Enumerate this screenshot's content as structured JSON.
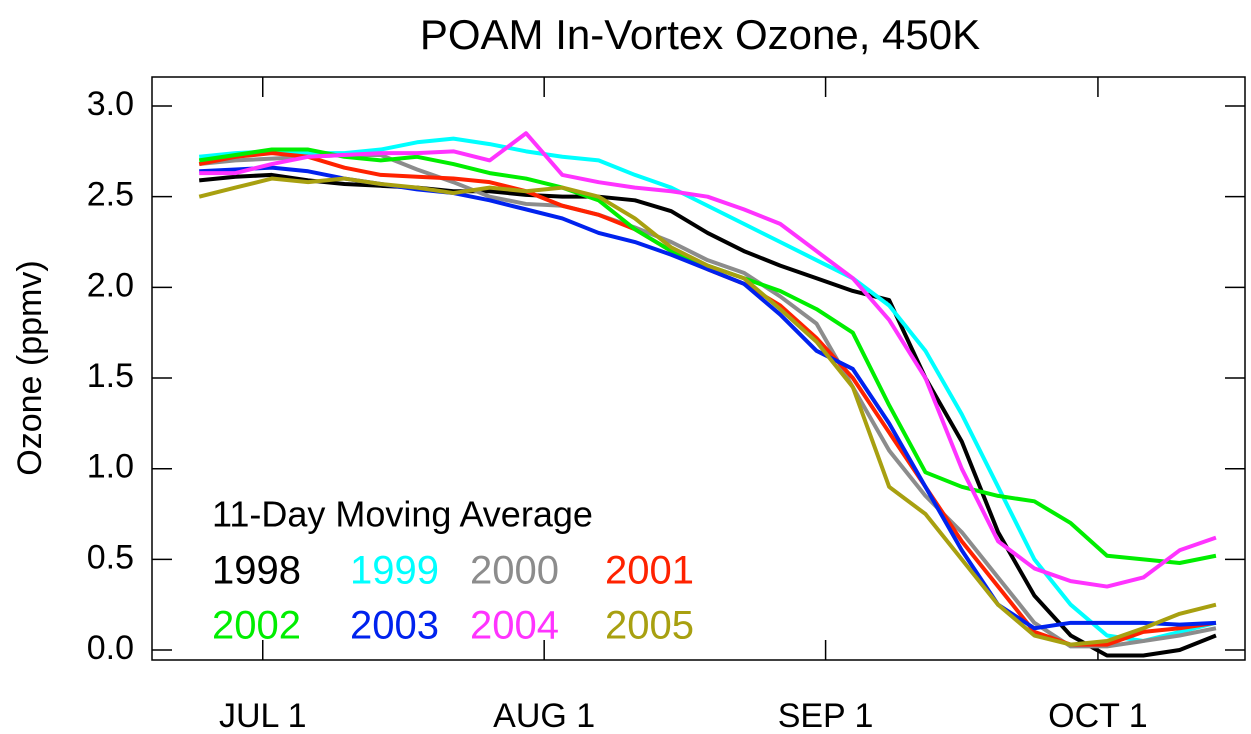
{
  "chart_data": {
    "type": "line",
    "title": "POAM In-Vortex Ozone, 450K",
    "ylabel": "Ozone (ppmv)",
    "legend_title": "11-Day Moving Average",
    "x": [
      -7,
      -3,
      1,
      5,
      9,
      13,
      17,
      21,
      25,
      29,
      33,
      37,
      41,
      45,
      49,
      53,
      57,
      61,
      65,
      69,
      73,
      77,
      81,
      85,
      89,
      93,
      97,
      101,
      105
    ],
    "xlim": [
      -12.2,
      108.2
    ],
    "xticks": [
      {
        "value": 0,
        "label": "JUL 1"
      },
      {
        "value": 31,
        "label": "AUG 1"
      },
      {
        "value": 62,
        "label": "SEP 1"
      },
      {
        "value": 92,
        "label": "OCT 1"
      }
    ],
    "ylim": [
      -0.055,
      3.16
    ],
    "yticks": [
      {
        "value": 0,
        "label": "0.0"
      },
      0.5,
      {
        "value": 1,
        "label": "1.0"
      },
      1.5,
      {
        "value": 2,
        "label": "2.0"
      },
      2.5,
      {
        "value": 3,
        "label": "3.0"
      }
    ],
    "series": [
      {
        "name": "1998",
        "color": "#000000",
        "values": [
          2.59,
          2.61,
          2.62,
          2.59,
          2.57,
          2.56,
          2.55,
          2.53,
          2.53,
          2.51,
          2.5,
          2.5,
          2.48,
          2.42,
          2.3,
          2.2,
          2.12,
          2.05,
          1.98,
          1.93,
          1.5,
          1.15,
          0.65,
          0.3,
          0.08,
          -0.03,
          -0.03,
          0.0,
          0.08
        ]
      },
      {
        "name": "1999",
        "color": "#00ffff",
        "values": [
          2.72,
          2.74,
          2.75,
          2.74,
          2.74,
          2.76,
          2.8,
          2.82,
          2.79,
          2.75,
          2.72,
          2.7,
          2.62,
          2.55,
          2.45,
          2.35,
          2.25,
          2.15,
          2.05,
          1.9,
          1.65,
          1.3,
          0.9,
          0.5,
          0.25,
          0.08,
          0.05,
          0.1,
          0.15
        ]
      },
      {
        "name": "2000",
        "color": "#8c8c8c",
        "values": [
          2.68,
          2.7,
          2.71,
          2.72,
          2.73,
          2.73,
          2.65,
          2.58,
          2.5,
          2.46,
          2.45,
          2.4,
          2.33,
          2.25,
          2.15,
          2.08,
          1.95,
          1.8,
          1.45,
          1.1,
          0.85,
          0.65,
          0.4,
          0.15,
          0.02,
          0.02,
          0.05,
          0.08,
          0.12
        ]
      },
      {
        "name": "2001",
        "color": "#ff2200",
        "values": [
          2.68,
          2.72,
          2.74,
          2.72,
          2.66,
          2.62,
          2.61,
          2.6,
          2.58,
          2.53,
          2.45,
          2.4,
          2.32,
          2.2,
          2.1,
          2.02,
          1.9,
          1.72,
          1.5,
          1.2,
          0.9,
          0.6,
          0.35,
          0.1,
          0.03,
          0.03,
          0.1,
          0.12,
          0.15
        ]
      },
      {
        "name": "2002",
        "color": "#00ee00",
        "values": [
          2.7,
          2.73,
          2.76,
          2.76,
          2.72,
          2.7,
          2.72,
          2.68,
          2.63,
          2.6,
          2.55,
          2.48,
          2.32,
          2.2,
          2.12,
          2.05,
          1.98,
          1.88,
          1.75,
          1.35,
          0.98,
          0.9,
          0.85,
          0.82,
          0.7,
          0.52,
          0.5,
          0.48,
          0.52
        ]
      },
      {
        "name": "2003",
        "color": "#0022ee",
        "values": [
          2.64,
          2.65,
          2.66,
          2.64,
          2.6,
          2.57,
          2.54,
          2.52,
          2.48,
          2.43,
          2.38,
          2.3,
          2.25,
          2.18,
          2.1,
          2.02,
          1.85,
          1.65,
          1.55,
          1.25,
          0.9,
          0.55,
          0.25,
          0.12,
          0.15,
          0.15,
          0.15,
          0.14,
          0.15
        ]
      },
      {
        "name": "2004",
        "color": "#ff33ff",
        "values": [
          2.63,
          2.63,
          2.68,
          2.72,
          2.73,
          2.74,
          2.74,
          2.75,
          2.7,
          2.85,
          2.62,
          2.58,
          2.55,
          2.53,
          2.5,
          2.43,
          2.35,
          2.2,
          2.05,
          1.82,
          1.5,
          1.0,
          0.6,
          0.45,
          0.38,
          0.35,
          0.4,
          0.55,
          0.62
        ]
      },
      {
        "name": "2005",
        "color": "#a8a010",
        "values": [
          2.5,
          2.55,
          2.6,
          2.58,
          2.6,
          2.57,
          2.55,
          2.52,
          2.55,
          2.53,
          2.55,
          2.5,
          2.38,
          2.22,
          2.12,
          2.05,
          1.88,
          1.7,
          1.45,
          0.9,
          0.75,
          0.5,
          0.25,
          0.08,
          0.03,
          0.05,
          0.12,
          0.2,
          0.25
        ]
      }
    ]
  }
}
